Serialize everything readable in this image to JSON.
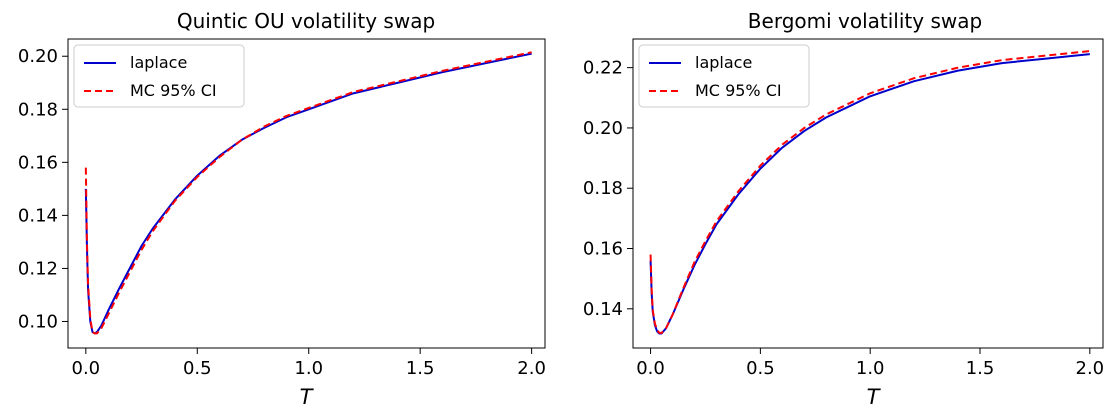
{
  "chart_data": [
    {
      "type": "line",
      "title": "Quintic OU volatility swap",
      "xlabel": "T",
      "ylabel": "",
      "xlim": [
        -0.08,
        2.06
      ],
      "ylim": [
        0.09,
        0.2065
      ],
      "xticks": [
        0.0,
        0.5,
        1.0,
        1.5,
        2.0
      ],
      "xtick_labels": [
        "0.0",
        "0.5",
        "1.0",
        "1.5",
        "2.0"
      ],
      "yticks": [
        0.1,
        0.12,
        0.14,
        0.16,
        0.18,
        0.2
      ],
      "ytick_labels": [
        "0.10",
        "0.12",
        "0.14",
        "0.16",
        "0.18",
        "0.20"
      ],
      "grid": false,
      "legend_position": "upper-left",
      "series": [
        {
          "name": "laplace",
          "color": "#0000cc",
          "style": "solid",
          "x": [
            0.0,
            0.005,
            0.01,
            0.02,
            0.03,
            0.04,
            0.05,
            0.07,
            0.1,
            0.15,
            0.2,
            0.25,
            0.3,
            0.4,
            0.5,
            0.6,
            0.7,
            0.8,
            0.9,
            1.0,
            1.2,
            1.4,
            1.6,
            1.8,
            2.0
          ],
          "y": [
            0.15,
            0.128,
            0.112,
            0.1,
            0.096,
            0.0955,
            0.096,
            0.0985,
            0.104,
            0.1125,
            0.1205,
            0.1285,
            0.135,
            0.146,
            0.155,
            0.1625,
            0.1685,
            0.173,
            0.177,
            0.18,
            0.186,
            0.19,
            0.194,
            0.1975,
            0.201
          ]
        },
        {
          "name": "MC 95% CI",
          "color": "#ff0000",
          "style": "dashed",
          "x": [
            0.0,
            0.005,
            0.01,
            0.02,
            0.03,
            0.04,
            0.05,
            0.07,
            0.1,
            0.15,
            0.2,
            0.25,
            0.3,
            0.4,
            0.5,
            0.6,
            0.7,
            0.8,
            0.9,
            1.0,
            1.2,
            1.4,
            1.6,
            1.8,
            2.0
          ],
          "y": [
            0.158,
            0.13,
            0.114,
            0.101,
            0.096,
            0.0955,
            0.0955,
            0.0975,
            0.1025,
            0.111,
            0.119,
            0.127,
            0.134,
            0.1455,
            0.1545,
            0.162,
            0.1685,
            0.1735,
            0.1775,
            0.1805,
            0.1865,
            0.1905,
            0.1945,
            0.198,
            0.2015
          ]
        }
      ]
    },
    {
      "type": "line",
      "title": "Bergomi volatility swap",
      "xlabel": "T",
      "ylabel": "",
      "xlim": [
        -0.08,
        2.06
      ],
      "ylim": [
        0.127,
        0.2295
      ],
      "xticks": [
        0.0,
        0.5,
        1.0,
        1.5,
        2.0
      ],
      "xtick_labels": [
        "0.0",
        "0.5",
        "1.0",
        "1.5",
        "2.0"
      ],
      "yticks": [
        0.14,
        0.16,
        0.18,
        0.2,
        0.22
      ],
      "ytick_labels": [
        "0.14",
        "0.16",
        "0.18",
        "0.20",
        "0.22"
      ],
      "grid": false,
      "legend_position": "upper-left",
      "series": [
        {
          "name": "laplace",
          "color": "#0000cc",
          "style": "solid",
          "x": [
            0.0,
            0.005,
            0.01,
            0.02,
            0.03,
            0.04,
            0.05,
            0.07,
            0.1,
            0.15,
            0.2,
            0.25,
            0.3,
            0.4,
            0.5,
            0.6,
            0.7,
            0.8,
            0.9,
            1.0,
            1.2,
            1.4,
            1.6,
            1.8,
            2.0
          ],
          "y": [
            0.156,
            0.145,
            0.139,
            0.1345,
            0.1325,
            0.1318,
            0.1318,
            0.1335,
            0.138,
            0.1465,
            0.1545,
            0.1615,
            0.168,
            0.178,
            0.1865,
            0.1935,
            0.199,
            0.2035,
            0.207,
            0.2105,
            0.2155,
            0.219,
            0.2215,
            0.223,
            0.2245
          ]
        },
        {
          "name": "MC 95% CI",
          "color": "#ff0000",
          "style": "dashed",
          "x": [
            0.0,
            0.005,
            0.01,
            0.02,
            0.03,
            0.04,
            0.05,
            0.07,
            0.1,
            0.15,
            0.2,
            0.25,
            0.3,
            0.4,
            0.5,
            0.6,
            0.7,
            0.8,
            0.9,
            1.0,
            1.2,
            1.4,
            1.6,
            1.8,
            2.0
          ],
          "y": [
            0.158,
            0.146,
            0.1395,
            0.135,
            0.133,
            0.132,
            0.132,
            0.1335,
            0.138,
            0.147,
            0.1555,
            0.1625,
            0.169,
            0.179,
            0.1875,
            0.1945,
            0.2,
            0.2045,
            0.208,
            0.2115,
            0.2165,
            0.22,
            0.2225,
            0.224,
            0.2255
          ]
        }
      ]
    }
  ]
}
